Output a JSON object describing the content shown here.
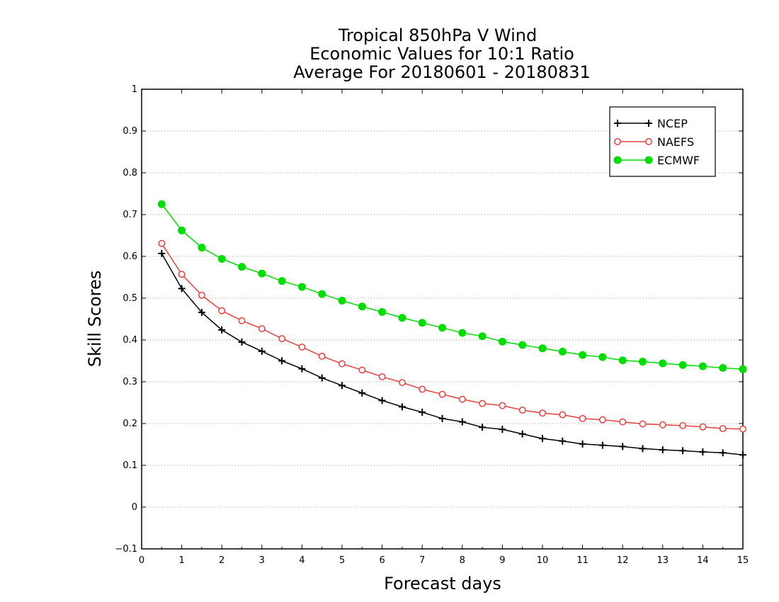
{
  "chart_data": {
    "type": "line",
    "title": [
      "Tropical 850hPa V Wind",
      "Economic Values for 10:1 Ratio",
      "Average For 20180601 - 20180831"
    ],
    "xlabel": "Forecast days",
    "ylabel": "Skill Scores",
    "xlim": [
      0,
      15
    ],
    "ylim": [
      -0.1,
      1
    ],
    "xticks": [
      0,
      1,
      2,
      3,
      4,
      5,
      6,
      7,
      8,
      9,
      10,
      11,
      12,
      13,
      14,
      15
    ],
    "xtick_labels": [
      "0",
      "1",
      "2",
      "3",
      "4",
      "5",
      "6",
      "7",
      "8",
      "9",
      "10",
      "11",
      "12",
      "13",
      "14",
      "15"
    ],
    "yticks": [
      -0.1,
      0,
      0.1,
      0.2,
      0.3,
      0.4,
      0.5,
      0.6,
      0.7,
      0.8,
      0.9,
      1
    ],
    "ytick_labels": [
      "−0.1",
      "0",
      "0.1",
      "0.2",
      "0.3",
      "0.4",
      "0.5",
      "0.6",
      "0.7",
      "0.8",
      "0.9",
      "1"
    ],
    "grid": "horizontal dotted",
    "legend_position": "top-right",
    "x": [
      0.5,
      1,
      1.5,
      2,
      2.5,
      3,
      3.5,
      4,
      4.5,
      5,
      5.5,
      6,
      6.5,
      7,
      7.5,
      8,
      8.5,
      9,
      9.5,
      10,
      10.5,
      11,
      11.5,
      12,
      12.5,
      13,
      13.5,
      14,
      14.5,
      15
    ],
    "series": [
      {
        "name": "NCEP",
        "color": "#000000",
        "marker": "plus",
        "values": [
          0.607,
          0.523,
          0.466,
          0.424,
          0.395,
          0.373,
          0.35,
          0.331,
          0.309,
          0.291,
          0.273,
          0.255,
          0.24,
          0.227,
          0.212,
          0.204,
          0.191,
          0.186,
          0.175,
          0.164,
          0.158,
          0.151,
          0.148,
          0.145,
          0.14,
          0.137,
          0.135,
          0.132,
          0.13,
          0.125
        ]
      },
      {
        "name": "NAEFS",
        "color": "#e84040",
        "marker": "open-circle",
        "values": [
          0.631,
          0.557,
          0.507,
          0.47,
          0.446,
          0.427,
          0.403,
          0.383,
          0.361,
          0.343,
          0.328,
          0.312,
          0.298,
          0.282,
          0.27,
          0.258,
          0.248,
          0.243,
          0.232,
          0.225,
          0.221,
          0.212,
          0.209,
          0.204,
          0.199,
          0.197,
          0.195,
          0.192,
          0.188,
          0.187
        ]
      },
      {
        "name": "ECMWF",
        "color": "#00dd00",
        "marker": "filled-circle",
        "values": [
          0.725,
          0.662,
          0.621,
          0.594,
          0.575,
          0.559,
          0.541,
          0.527,
          0.51,
          0.494,
          0.48,
          0.467,
          0.453,
          0.441,
          0.429,
          0.417,
          0.409,
          0.396,
          0.388,
          0.38,
          0.372,
          0.364,
          0.359,
          0.351,
          0.348,
          0.344,
          0.34,
          0.337,
          0.333,
          0.33
        ]
      }
    ]
  }
}
